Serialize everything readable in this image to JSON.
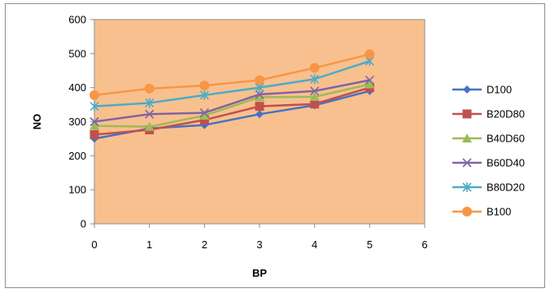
{
  "chart_data": {
    "type": "line",
    "title": "",
    "xlabel": "BP",
    "ylabel": "NO",
    "xlim": [
      0,
      6
    ],
    "ylim": [
      0,
      600
    ],
    "x_ticks": [
      0,
      1,
      2,
      3,
      4,
      5,
      6
    ],
    "y_ticks": [
      0,
      100,
      200,
      300,
      400,
      500,
      600
    ],
    "grid": false,
    "plot_background": "#F9C08F",
    "legend_position": "right",
    "x": [
      0,
      1,
      2,
      3,
      4,
      5
    ],
    "series": [
      {
        "name": "D100",
        "color": "#4472C4",
        "marker": "diamond",
        "values": [
          250,
          280,
          290,
          322,
          348,
          390
        ]
      },
      {
        "name": "B20D80",
        "color": "#C0504D",
        "marker": "square",
        "values": [
          262,
          276,
          305,
          345,
          352,
          400
        ]
      },
      {
        "name": "B40D60",
        "color": "#9BBB59",
        "marker": "triangle",
        "values": [
          288,
          285,
          318,
          372,
          373,
          410
        ]
      },
      {
        "name": "B60D40",
        "color": "#8064A2",
        "marker": "x",
        "values": [
          300,
          322,
          326,
          380,
          390,
          422
        ]
      },
      {
        "name": "B80D20",
        "color": "#4BACC6",
        "marker": "asterisk",
        "values": [
          345,
          355,
          378,
          400,
          425,
          478
        ]
      },
      {
        "name": "B100",
        "color": "#F79646",
        "marker": "circle",
        "values": [
          378,
          397,
          406,
          422,
          458,
          498
        ]
      }
    ]
  }
}
